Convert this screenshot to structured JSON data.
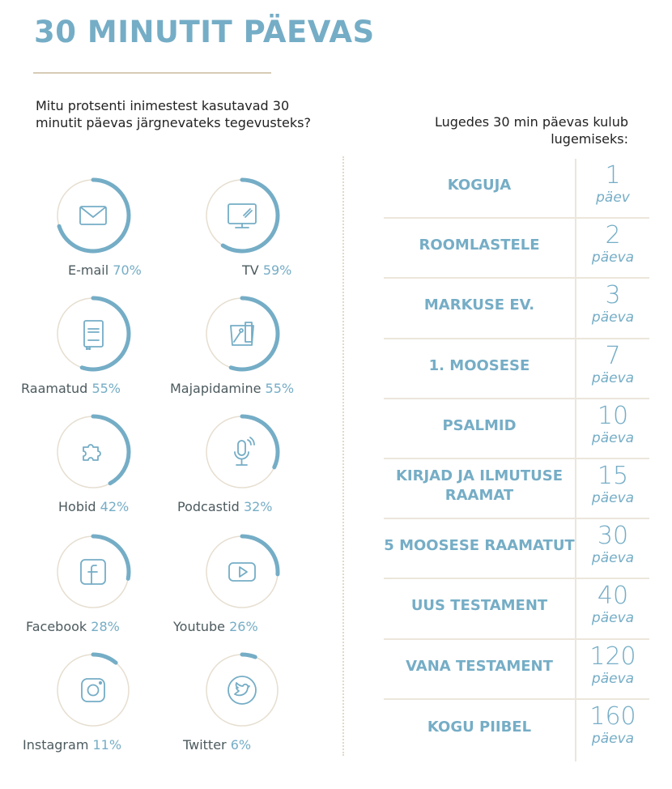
{
  "title": "30 MINUTIT PÄEVAS",
  "left_question": "Mitu protsenti inimestest kasutavad 30 minutit päevas järgnevateks tegevusteks?",
  "right_question": "Lugedes 30 min päevas  kulub lugemiseks:",
  "colors": {
    "accent": "#75adc6",
    "ring_track": "#e6ded0",
    "rule": "#d7cbb5",
    "label": "#4c5a5e"
  },
  "activities": [
    {
      "name": "E-mail",
      "pct": "70%",
      "icon": "envelope-icon"
    },
    {
      "name": "TV",
      "pct": "59%",
      "icon": "tv-icon"
    },
    {
      "name": "Raamatud",
      "pct": "55%",
      "icon": "book-icon"
    },
    {
      "name": "Majapidamine",
      "pct": "55%",
      "icon": "household-icon"
    },
    {
      "name": "Hobid",
      "pct": "42%",
      "icon": "puzzle-icon"
    },
    {
      "name": "Podcastid",
      "pct": "32%",
      "icon": "microphone-icon"
    },
    {
      "name": "Facebook",
      "pct": "28%",
      "icon": "facebook-icon"
    },
    {
      "name": "Youtube",
      "pct": "26%",
      "icon": "youtube-icon"
    },
    {
      "name": "Instagram",
      "pct": "11%",
      "icon": "instagram-icon"
    },
    {
      "name": "Twitter",
      "pct": "6%",
      "icon": "twitter-icon"
    }
  ],
  "reading": [
    {
      "book": "KOGUJA",
      "days": "1",
      "unit": "päev"
    },
    {
      "book": "ROOMLASTELE",
      "days": "2",
      "unit": "päeva"
    },
    {
      "book": "MARKUSE EV.",
      "days": "3",
      "unit": "päeva"
    },
    {
      "book": "1. MOOSESE",
      "days": "7",
      "unit": "päeva"
    },
    {
      "book": "PSALMID",
      "days": "10",
      "unit": "päeva"
    },
    {
      "book": "KIRJAD JA ILMUTUSE RAAMAT",
      "days": "15",
      "unit": "päeva"
    },
    {
      "book": "5 MOOSESE RAAMATUT",
      "days": "30",
      "unit": "päeva"
    },
    {
      "book": "UUS TESTAMENT",
      "days": "40",
      "unit": "päeva"
    },
    {
      "book": "VANA TESTAMENT",
      "days": "120",
      "unit": "päeva"
    },
    {
      "book": "KOGU PIIBEL",
      "days": "160",
      "unit": "päeva"
    }
  ],
  "chart_data": [
    {
      "type": "pie",
      "title": "Mitu protsenti inimestest kasutavad 30 minutit päevas järgnevateks tegevusteks?",
      "categories": [
        "E-mail",
        "TV",
        "Raamatud",
        "Majapidamine",
        "Hobid",
        "Podcastid",
        "Facebook",
        "Youtube",
        "Instagram",
        "Twitter"
      ],
      "values": [
        70,
        59,
        55,
        55,
        42,
        32,
        28,
        26,
        11,
        6
      ],
      "unit": "%"
    },
    {
      "type": "table",
      "title": "Lugedes 30 min päevas kulub lugemiseks:",
      "categories": [
        "KOGUJA",
        "ROOMLASTELE",
        "MARKUSE EV.",
        "1. MOOSESE",
        "PSALMID",
        "KIRJAD JA ILMUTUSE RAAMAT",
        "5 MOOSESE RAAMATUT",
        "UUS TESTAMENT",
        "VANA TESTAMENT",
        "KOGU PIIBEL"
      ],
      "values": [
        1,
        2,
        3,
        7,
        10,
        15,
        30,
        40,
        120,
        160
      ],
      "unit": "päeva"
    }
  ]
}
